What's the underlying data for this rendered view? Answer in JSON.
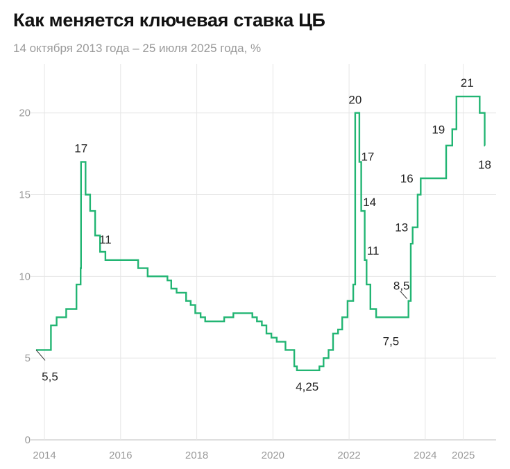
{
  "title": "Как меняется ключевая ставка ЦБ",
  "subtitle": "14 октября 2013 года – 25 июля 2025 года, %",
  "colors": {
    "line": "#22b573",
    "grid": "#e6e6e6",
    "axis": "#bdbdbd",
    "text": "#222222",
    "muted": "#9a9a9a"
  },
  "chart_data": {
    "type": "line",
    "step": true,
    "title": "Как меняется ключевая ставка ЦБ",
    "subtitle": "14 октября 2013 года – 25 июля 2025 года, %",
    "xlabel": "",
    "ylabel": "",
    "x_range": [
      2013.78,
      2025.57
    ],
    "ylim": [
      0,
      23
    ],
    "grid": true,
    "y_ticks": [
      0,
      5,
      10,
      15,
      20
    ],
    "y_tick_labels": [
      "0",
      "5",
      "10",
      "15",
      "20"
    ],
    "x_ticks": [
      2014,
      2016,
      2018,
      2020,
      2022,
      2024,
      2025
    ],
    "x_tick_labels": [
      "2014",
      "2016",
      "2018",
      "2020",
      "2022",
      "2024",
      "2025"
    ],
    "series": [
      {
        "points": [
          [
            2013.78,
            5.5
          ],
          [
            2014.17,
            7.0
          ],
          [
            2014.32,
            7.5
          ],
          [
            2014.57,
            8.0
          ],
          [
            2014.84,
            9.5
          ],
          [
            2014.95,
            10.5
          ],
          [
            2014.96,
            17.0
          ],
          [
            2015.08,
            15.0
          ],
          [
            2015.2,
            14.0
          ],
          [
            2015.33,
            12.5
          ],
          [
            2015.46,
            11.5
          ],
          [
            2015.6,
            11.0
          ],
          [
            2016.46,
            10.5
          ],
          [
            2016.71,
            10.0
          ],
          [
            2017.23,
            9.75
          ],
          [
            2017.33,
            9.25
          ],
          [
            2017.47,
            9.0
          ],
          [
            2017.72,
            8.5
          ],
          [
            2017.84,
            8.25
          ],
          [
            2017.96,
            7.75
          ],
          [
            2018.1,
            7.5
          ],
          [
            2018.22,
            7.25
          ],
          [
            2018.72,
            7.5
          ],
          [
            2018.96,
            7.75
          ],
          [
            2019.46,
            7.5
          ],
          [
            2019.58,
            7.25
          ],
          [
            2019.71,
            7.0
          ],
          [
            2019.83,
            6.5
          ],
          [
            2019.96,
            6.25
          ],
          [
            2020.1,
            6.0
          ],
          [
            2020.33,
            5.5
          ],
          [
            2020.56,
            4.5
          ],
          [
            2020.63,
            4.25
          ],
          [
            2021.22,
            4.5
          ],
          [
            2021.33,
            5.0
          ],
          [
            2021.46,
            5.5
          ],
          [
            2021.58,
            6.5
          ],
          [
            2021.71,
            6.75
          ],
          [
            2021.82,
            7.5
          ],
          [
            2021.96,
            8.5
          ],
          [
            2022.11,
            9.5
          ],
          [
            2022.16,
            20.0
          ],
          [
            2022.27,
            17.0
          ],
          [
            2022.32,
            14.0
          ],
          [
            2022.41,
            11.0
          ],
          [
            2022.46,
            9.5
          ],
          [
            2022.56,
            8.0
          ],
          [
            2022.71,
            7.5
          ],
          [
            2023.56,
            8.5
          ],
          [
            2023.62,
            12.0
          ],
          [
            2023.67,
            13.0
          ],
          [
            2023.8,
            15.0
          ],
          [
            2023.88,
            16.0
          ],
          [
            2024.55,
            18.0
          ],
          [
            2024.71,
            19.0
          ],
          [
            2024.82,
            21.0
          ],
          [
            2025.43,
            20.0
          ],
          [
            2025.56,
            18.0
          ],
          [
            2025.57,
            18.0
          ]
        ]
      }
    ],
    "annotations": [
      {
        "text": "5,5",
        "x": 2013.78,
        "y": 5.5
      },
      {
        "text": "17",
        "x": 2014.96,
        "y": 17.0
      },
      {
        "text": "11",
        "x": 2015.6,
        "y": 11.0
      },
      {
        "text": "4,25",
        "x": 2020.9,
        "y": 4.25
      },
      {
        "text": "20",
        "x": 2022.16,
        "y": 20.0
      },
      {
        "text": "17",
        "x": 2022.27,
        "y": 17.0
      },
      {
        "text": "14",
        "x": 2022.32,
        "y": 14.0
      },
      {
        "text": "11",
        "x": 2022.41,
        "y": 11.0
      },
      {
        "text": "7,5",
        "x": 2023.1,
        "y": 7.5
      },
      {
        "text": "8,5",
        "x": 2023.56,
        "y": 8.5
      },
      {
        "text": "13",
        "x": 2023.67,
        "y": 13.0
      },
      {
        "text": "16",
        "x": 2023.88,
        "y": 16.0
      },
      {
        "text": "19",
        "x": 2024.71,
        "y": 19.0
      },
      {
        "text": "21",
        "x": 2025.1,
        "y": 21.0
      },
      {
        "text": "18",
        "x": 2025.56,
        "y": 18.0
      }
    ]
  }
}
